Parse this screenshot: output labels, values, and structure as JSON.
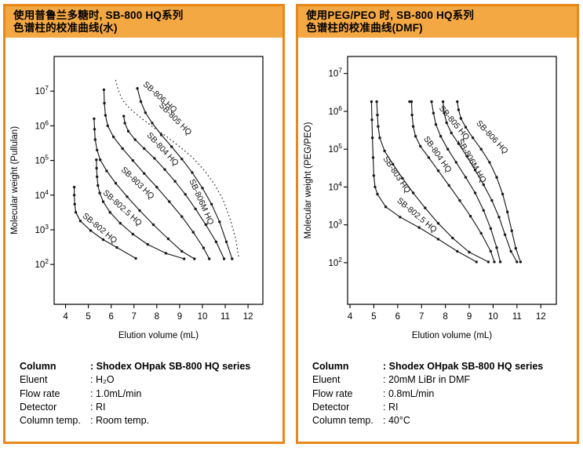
{
  "colors": {
    "panel_border": "#E8881A",
    "header_bg": "#F4A843",
    "curve": "#1a1a1a",
    "axis": "#000000",
    "text": "#000000",
    "background": "#ffffff"
  },
  "panels": [
    {
      "name": "pullulan-water",
      "title_line1": "使用普鲁兰多糖时, SB-800 HQ系列",
      "title_line2": "色谱柱的校准曲线(水)",
      "specs": [
        {
          "label": "Column",
          "value": "Shodex OHpak SB-800 HQ series",
          "bold": true
        },
        {
          "label": "Eluent",
          "value": "H₂O",
          "bold": false
        },
        {
          "label": "Flow rate",
          "value": "1.0mL/min",
          "bold": false
        },
        {
          "label": "Detector",
          "value": "RI",
          "bold": false
        },
        {
          "label": "Column temp.",
          "value": "Room temp.",
          "bold": false
        }
      ]
    },
    {
      "name": "peg-peo-dmf",
      "title_line1": "使用PEG/PEO 时, SB-800 HQ系列",
      "title_line2": "色谱柱的校准曲线(DMF)",
      "specs": [
        {
          "label": "Column",
          "value": "Shodex OHpak SB-800 HQ series",
          "bold": true
        },
        {
          "label": "Eluent",
          "value": "20mM LiBr in DMF",
          "bold": false
        },
        {
          "label": "Flow rate",
          "value": "0.8mL/min",
          "bold": false
        },
        {
          "label": "Detector",
          "value": "RI",
          "bold": false
        },
        {
          "label": "Column temp.",
          "value": "40°C",
          "bold": false
        }
      ]
    }
  ],
  "chart_data": [
    {
      "type": "line",
      "title": "Calibration curves of SB-800 HQ series with pullulan (water)",
      "xlabel": "Elution volume (mL)",
      "ylabel": "Molecular weight (Pullulan)",
      "yscale": "log",
      "grid": false,
      "x_ticks": [
        4,
        5,
        6,
        7,
        8,
        9,
        10,
        11,
        12
      ],
      "y_tick_exponents": [
        2,
        3,
        4,
        5,
        6,
        7
      ],
      "xlim": [
        3.5,
        12.65
      ],
      "ylim_log": [
        0.85,
        8.0
      ],
      "series": [
        {
          "name": "SB-802 HQ",
          "dash": false,
          "markers": true,
          "label_pos": {
            "x": 4.72,
            "logy": 3.38,
            "angle": 40
          },
          "points": [
            [
              4.38,
              17000
            ],
            [
              4.38,
              10000
            ],
            [
              4.4,
              5500
            ],
            [
              4.45,
              3200
            ],
            [
              4.65,
              1800
            ],
            [
              5.1,
              950
            ],
            [
              5.65,
              520
            ],
            [
              6.25,
              310
            ],
            [
              7.08,
              150
            ]
          ]
        },
        {
          "name": "SB-802.5 HQ",
          "dash": false,
          "markers": true,
          "label_pos": {
            "x": 5.62,
            "logy": 4.05,
            "angle": 42
          },
          "points": [
            [
              5.35,
              105000
            ],
            [
              5.36,
              60000
            ],
            [
              5.38,
              34000
            ],
            [
              5.42,
              19000
            ],
            [
              5.5,
              11500
            ],
            [
              5.65,
              6500
            ],
            [
              5.95,
              3200
            ],
            [
              6.4,
              1550
            ],
            [
              6.95,
              750
            ],
            [
              7.6,
              380
            ],
            [
              8.4,
              210
            ],
            [
              9.2,
              145
            ]
          ]
        },
        {
          "name": "SB-803 HQ",
          "dash": false,
          "markers": true,
          "label_pos": {
            "x": 6.42,
            "logy": 4.72,
            "angle": 44
          },
          "points": [
            [
              5.25,
              1600000
            ],
            [
              5.27,
              800000
            ],
            [
              5.3,
              400000
            ],
            [
              5.38,
              200000
            ],
            [
              5.52,
              105000
            ],
            [
              5.8,
              50000
            ],
            [
              6.2,
              22000
            ],
            [
              6.7,
              9000
            ],
            [
              7.25,
              3600
            ],
            [
              7.85,
              1400
            ],
            [
              8.5,
              550
            ],
            [
              9.1,
              240
            ],
            [
              9.65,
              145
            ]
          ]
        },
        {
          "name": "SB-804 HQ",
          "dash": false,
          "markers": true,
          "label_pos": {
            "x": 7.55,
            "logy": 5.72,
            "angle": 47
          },
          "points": [
            [
              5.68,
              11000000
            ],
            [
              5.7,
              4500000
            ],
            [
              5.75,
              2000000
            ],
            [
              5.85,
              1000000
            ],
            [
              6.1,
              480000
            ],
            [
              6.5,
              220000
            ],
            [
              6.95,
              100000
            ],
            [
              7.45,
              42000
            ],
            [
              8.0,
              17000
            ],
            [
              8.55,
              6500
            ],
            [
              9.1,
              2400
            ],
            [
              9.6,
              850
            ],
            [
              10.05,
              300
            ],
            [
              10.3,
              145
            ]
          ]
        },
        {
          "name": "SB-806M HQ",
          "dash": false,
          "markers": true,
          "label_pos": {
            "x": 9.42,
            "logy": 4.42,
            "angle": 66
          },
          "points": [
            [
              6.55,
              1900000
            ],
            [
              6.6,
              1200000
            ],
            [
              6.75,
              700000
            ],
            [
              7.05,
              400000
            ],
            [
              7.45,
              220000
            ],
            [
              7.9,
              115000
            ],
            [
              8.35,
              55000
            ],
            [
              8.8,
              25000
            ],
            [
              9.25,
              10500
            ],
            [
              9.7,
              4000
            ],
            [
              10.15,
              1400
            ],
            [
              10.6,
              450
            ],
            [
              10.95,
              145
            ]
          ]
        },
        {
          "name": "SB-805 HQ",
          "dash": false,
          "markers": true,
          "label_pos": {
            "x": 8.08,
            "logy": 6.58,
            "angle": 45
          },
          "points": [
            [
              7.15,
              12000000
            ],
            [
              7.3,
              5000000
            ],
            [
              7.5,
              2400000
            ],
            [
              7.8,
              1200000
            ],
            [
              8.2,
              550000
            ],
            [
              8.65,
              250000
            ],
            [
              9.1,
              110000
            ],
            [
              9.55,
              45000
            ],
            [
              10.0,
              16000
            ],
            [
              10.4,
              5500
            ],
            [
              10.75,
              1700
            ],
            [
              11.05,
              450
            ],
            [
              11.3,
              145
            ]
          ]
        },
        {
          "name": "SB-806 HQ",
          "dash": true,
          "markers": false,
          "label_pos": {
            "x": 7.38,
            "logy": 7.18,
            "angle": 42
          },
          "points": [
            [
              6.2,
              21000000
            ],
            [
              6.3,
              11000000
            ],
            [
              6.5,
              5500000
            ],
            [
              6.85,
              3000000
            ],
            [
              7.3,
              1700000
            ],
            [
              7.85,
              900000
            ],
            [
              8.45,
              480000
            ],
            [
              9.0,
              250000
            ],
            [
              9.55,
              125000
            ],
            [
              10.05,
              55000
            ],
            [
              10.5,
              22000
            ],
            [
              10.9,
              7500
            ],
            [
              11.2,
              2200
            ],
            [
              11.45,
              600
            ],
            [
              11.6,
              145
            ]
          ]
        }
      ]
    },
    {
      "type": "line",
      "title": "Calibration curves of SB-800 HQ series with PEG/PEO (DMF)",
      "xlabel": "Elution volume (mL)",
      "ylabel": "Molecular weight (PEG/PEO)",
      "yscale": "log",
      "grid": false,
      "x_ticks": [
        4,
        5,
        6,
        7,
        8,
        9,
        10,
        11,
        12
      ],
      "y_tick_exponents": [
        2,
        3,
        4,
        5,
        6,
        7
      ],
      "xlim": [
        3.9,
        12.65
      ],
      "ylim_log": [
        0.9,
        7.45
      ],
      "series": [
        {
          "name": "SB-802.5 HQ",
          "dash": false,
          "markers": true,
          "label_pos": {
            "x": 5.95,
            "logy": 3.62,
            "angle": 40
          },
          "points": [
            [
              4.9,
              1800000
            ],
            [
              4.92,
              600000
            ],
            [
              4.94,
              200000
            ],
            [
              4.97,
              60000
            ],
            [
              5.0,
              20000
            ],
            [
              5.05,
              10000
            ],
            [
              5.15,
              6500
            ],
            [
              5.5,
              3000
            ],
            [
              6.1,
              1600
            ],
            [
              6.9,
              850
            ],
            [
              7.7,
              420
            ],
            [
              8.5,
              200
            ],
            [
              9.3,
              105
            ]
          ]
        },
        {
          "name": "SB-803 HQ",
          "dash": false,
          "markers": true,
          "label_pos": {
            "x": 5.38,
            "logy": 4.75,
            "angle": 56
          },
          "points": [
            [
              5.12,
              1800000
            ],
            [
              5.15,
              800000
            ],
            [
              5.18,
              400000
            ],
            [
              5.25,
              200000
            ],
            [
              5.45,
              90000
            ],
            [
              5.8,
              40000
            ],
            [
              6.2,
              17000
            ],
            [
              6.65,
              7000
            ],
            [
              7.15,
              2800
            ],
            [
              7.7,
              1100
            ],
            [
              8.3,
              450
            ],
            [
              9.0,
              190
            ],
            [
              9.8,
              105
            ]
          ]
        },
        {
          "name": "SB-804 HQ",
          "dash": false,
          "markers": true,
          "label_pos": {
            "x": 7.08,
            "logy": 5.28,
            "angle": 55
          },
          "points": [
            [
              6.5,
              1800000
            ],
            [
              6.58,
              1800000
            ],
            [
              6.6,
              800000
            ],
            [
              6.65,
              400000
            ],
            [
              6.75,
              220000
            ],
            [
              6.95,
              120000
            ],
            [
              7.3,
              60000
            ],
            [
              7.7,
              27000
            ],
            [
              8.15,
              11000
            ],
            [
              8.6,
              4400
            ],
            [
              9.05,
              1700
            ],
            [
              9.5,
              600
            ],
            [
              9.9,
              200
            ],
            [
              10.05,
              105
            ]
          ]
        },
        {
          "name": "SB-805 HQ",
          "dash": false,
          "markers": true,
          "label_pos": {
            "x": 7.72,
            "logy": 6.08,
            "angle": 50
          },
          "points": [
            [
              7.42,
              1800000
            ],
            [
              7.5,
              900000
            ],
            [
              7.6,
              450000
            ],
            [
              7.8,
              220000
            ],
            [
              8.1,
              100000
            ],
            [
              8.45,
              45000
            ],
            [
              8.85,
              18000
            ],
            [
              9.25,
              7000
            ],
            [
              9.6,
              2400
            ],
            [
              9.9,
              800
            ],
            [
              10.15,
              250
            ],
            [
              10.3,
              105
            ]
          ]
        },
        {
          "name": "SB-806M HQ",
          "dash": false,
          "markers": true,
          "label_pos": {
            "x": 8.5,
            "logy": 5.22,
            "angle": 60
          },
          "points": [
            [
              7.9,
              1800000
            ],
            [
              7.95,
              900000
            ],
            [
              8.05,
              500000
            ],
            [
              8.25,
              270000
            ],
            [
              8.55,
              140000
            ],
            [
              8.9,
              65000
            ],
            [
              9.25,
              28000
            ],
            [
              9.6,
              11500
            ],
            [
              9.95,
              4400
            ],
            [
              10.25,
              1600
            ],
            [
              10.5,
              550
            ],
            [
              10.75,
              200
            ],
            [
              11.0,
              105
            ]
          ]
        },
        {
          "name": "SB-806 HQ",
          "dash": false,
          "markers": true,
          "label_pos": {
            "x": 9.28,
            "logy": 5.68,
            "angle": 47
          },
          "points": [
            [
              8.5,
              1800000
            ],
            [
              8.55,
              1100000
            ],
            [
              8.65,
              650000
            ],
            [
              8.85,
              380000
            ],
            [
              9.15,
              200000
            ],
            [
              9.5,
              100000
            ],
            [
              9.85,
              45000
            ],
            [
              10.15,
              18000
            ],
            [
              10.4,
              6500
            ],
            [
              10.6,
              2200
            ],
            [
              10.78,
              700
            ],
            [
              10.95,
              240
            ],
            [
              11.15,
              105
            ]
          ]
        }
      ]
    }
  ]
}
